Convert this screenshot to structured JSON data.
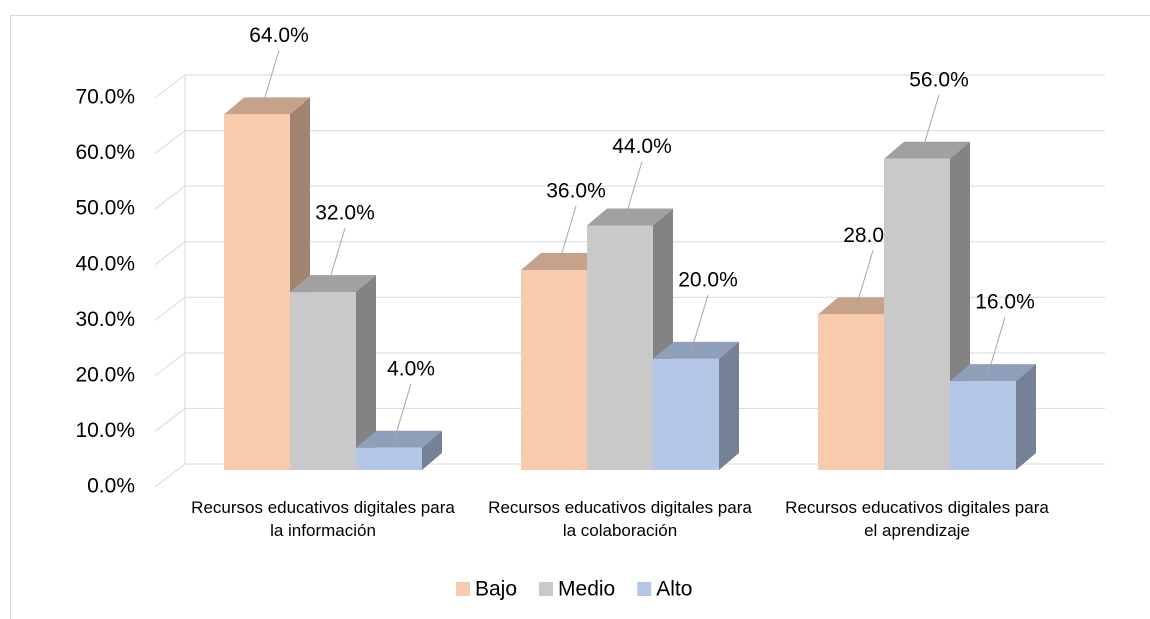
{
  "chart_data": {
    "type": "bar3d",
    "categories": [
      "Recursos educativos digitales para la información",
      "Recursos educativos digitales para la colaboración",
      "Recursos educativos digitales para el aprendizaje"
    ],
    "series": [
      {
        "name": "Bajo",
        "color": "#f8cbad",
        "values": [
          64,
          36,
          28
        ],
        "value_labels": [
          "64.0%",
          "36.0%",
          "28.0%"
        ]
      },
      {
        "name": "Medio",
        "color": "#c9c9c9",
        "values": [
          32,
          44,
          56
        ],
        "value_labels": [
          "32.0%",
          "44.0%",
          "56.0%"
        ]
      },
      {
        "name": "Alto",
        "color": "#b4c7e7",
        "values": [
          4,
          20,
          16
        ],
        "value_labels": [
          "4.0%",
          "20.0%",
          "16.0%"
        ]
      }
    ],
    "ylim": [
      0,
      70
    ],
    "yticks": [
      {
        "value": 0,
        "label": "0.0%"
      },
      {
        "value": 10,
        "label": "10.0%"
      },
      {
        "value": 20,
        "label": "20.0%"
      },
      {
        "value": 30,
        "label": "30.0%"
      },
      {
        "value": 40,
        "label": "40.0%"
      },
      {
        "value": 50,
        "label": "50.0%"
      },
      {
        "value": 60,
        "label": "60.0%"
      },
      {
        "value": 70,
        "label": "70.0%"
      }
    ],
    "grid": true,
    "legend": "bottom"
  }
}
